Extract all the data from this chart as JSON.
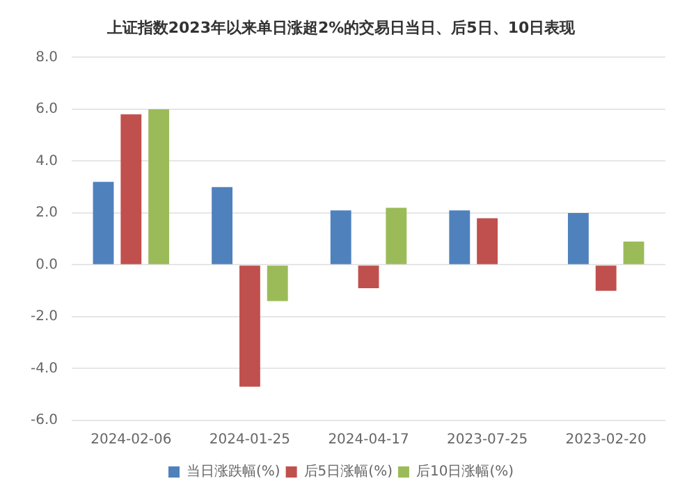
{
  "chart_data": {
    "type": "bar",
    "title": "上证指数2023年以来单日涨超2%的交易日当日、后5日、10日表现",
    "categories": [
      "2024-02-06",
      "2024-01-25",
      "2024-04-17",
      "2023-07-25",
      "2023-02-20"
    ],
    "series": [
      {
        "name": "当日涨跌幅(%)",
        "color": "#4f81bd",
        "values": [
          3.2,
          3.0,
          2.1,
          2.1,
          2.0
        ]
      },
      {
        "name": "后5日涨幅(%)",
        "color": "#c0504d",
        "values": [
          5.8,
          -4.7,
          -0.9,
          1.8,
          -1.0
        ]
      },
      {
        "name": "后10日涨幅(%)",
        "color": "#9bbb59",
        "values": [
          6.0,
          -1.4,
          2.2,
          null,
          0.9
        ]
      }
    ],
    "ylim": [
      -6,
      8
    ],
    "yticks": [
      {
        "value": -6,
        "label": "-6.0"
      },
      {
        "value": -4,
        "label": "-4.0"
      },
      {
        "value": -2,
        "label": "-2.0"
      },
      {
        "value": 0,
        "label": "0.0"
      },
      {
        "value": 2,
        "label": "2.0"
      },
      {
        "value": 4,
        "label": "4.0"
      },
      {
        "value": 6,
        "label": "6.0"
      },
      {
        "value": 8,
        "label": "8.0"
      }
    ],
    "grid": "y",
    "legend": "bottom"
  }
}
